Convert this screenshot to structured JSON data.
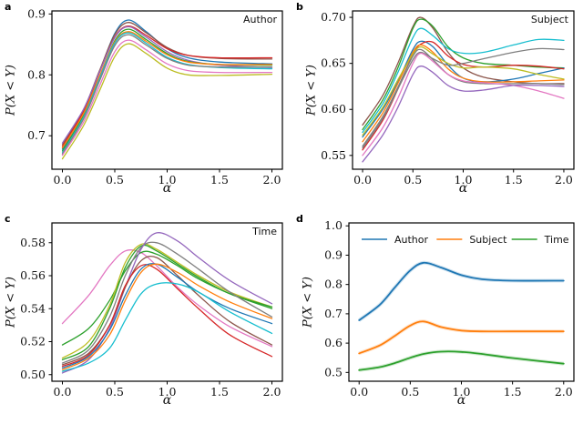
{
  "chart_data": [
    {
      "type": "line",
      "letter": "a",
      "panel_title": "Author",
      "xlabel": "α",
      "ylabel": "P(X < Y)",
      "xlim": [
        -0.1,
        2.1
      ],
      "ylim": [
        0.645,
        0.905
      ],
      "xticks": [
        "0.0",
        "0.5",
        "1.0",
        "1.5",
        "2.0"
      ],
      "xtick_values": [
        0,
        0.5,
        1.0,
        1.5,
        2.0
      ],
      "yticks": [
        "0.7",
        "0.8",
        "0.9"
      ],
      "ytick_values": [
        0.7,
        0.8,
        0.9
      ],
      "x": [
        0,
        0.2,
        0.35,
        0.5,
        0.63,
        0.8,
        1.0,
        1.2,
        1.5,
        2.0
      ],
      "series": [
        {
          "color": "#1f77b4",
          "y": [
            0.678,
            0.738,
            0.803,
            0.868,
            0.89,
            0.871,
            0.843,
            0.828,
            0.821,
            0.818
          ]
        },
        {
          "color": "#8c564b",
          "y": [
            0.685,
            0.742,
            0.805,
            0.866,
            0.886,
            0.869,
            0.845,
            0.832,
            0.827,
            0.826
          ]
        },
        {
          "color": "#d62728",
          "y": [
            0.682,
            0.74,
            0.802,
            0.862,
            0.88,
            0.865,
            0.843,
            0.832,
            0.828,
            0.828
          ]
        },
        {
          "color": "#9467bd",
          "y": [
            0.688,
            0.743,
            0.803,
            0.861,
            0.879,
            0.862,
            0.838,
            0.824,
            0.816,
            0.812
          ]
        },
        {
          "color": "#2ca02c",
          "y": [
            0.675,
            0.733,
            0.795,
            0.856,
            0.875,
            0.858,
            0.835,
            0.822,
            0.817,
            0.816
          ]
        },
        {
          "color": "#ff7f0e",
          "y": [
            0.68,
            0.736,
            0.796,
            0.854,
            0.871,
            0.855,
            0.833,
            0.821,
            0.817,
            0.817
          ]
        },
        {
          "color": "#17becf",
          "y": [
            0.672,
            0.73,
            0.792,
            0.852,
            0.869,
            0.852,
            0.829,
            0.817,
            0.812,
            0.81
          ]
        },
        {
          "color": "#7f7f7f",
          "y": [
            0.67,
            0.727,
            0.788,
            0.848,
            0.866,
            0.849,
            0.827,
            0.816,
            0.813,
            0.813
          ]
        },
        {
          "color": "#e377c2",
          "y": [
            0.668,
            0.722,
            0.78,
            0.838,
            0.857,
            0.841,
            0.818,
            0.807,
            0.804,
            0.804
          ]
        },
        {
          "color": "#bcbd22",
          "y": [
            0.662,
            0.716,
            0.772,
            0.83,
            0.851,
            0.835,
            0.811,
            0.8,
            0.799,
            0.801
          ]
        }
      ],
      "legend": null
    },
    {
      "type": "line",
      "letter": "b",
      "panel_title": "Subject",
      "xlabel": "α",
      "ylabel": "P(X < Y)",
      "xlim": [
        -0.1,
        2.1
      ],
      "ylim": [
        0.535,
        0.707
      ],
      "xticks": [
        "0.0",
        "0.5",
        "1.0",
        "1.5",
        "2.0"
      ],
      "xtick_values": [
        0,
        0.5,
        1.0,
        1.5,
        2.0
      ],
      "yticks": [
        "0.55",
        "0.60",
        "0.65",
        "0.70"
      ],
      "ytick_values": [
        0.55,
        0.6,
        0.65,
        0.7
      ],
      "x": [
        0,
        0.2,
        0.35,
        0.5,
        0.58,
        0.7,
        0.85,
        1.0,
        1.2,
        1.5,
        1.75,
        2.0
      ],
      "series": [
        {
          "color": "#8c564b",
          "y": [
            0.583,
            0.615,
            0.65,
            0.69,
            0.7,
            0.688,
            0.662,
            0.645,
            0.635,
            0.63,
            0.628,
            0.628
          ]
        },
        {
          "color": "#2ca02c",
          "y": [
            0.578,
            0.61,
            0.645,
            0.688,
            0.698,
            0.69,
            0.668,
            0.656,
            0.65,
            0.648,
            0.646,
            0.645
          ]
        },
        {
          "color": "#17becf",
          "y": [
            0.575,
            0.606,
            0.64,
            0.678,
            0.688,
            0.68,
            0.666,
            0.661,
            0.662,
            0.67,
            0.676,
            0.675
          ]
        },
        {
          "color": "#1f77b4",
          "y": [
            0.57,
            0.6,
            0.63,
            0.665,
            0.674,
            0.668,
            0.648,
            0.634,
            0.63,
            0.633,
            0.639,
            0.645
          ]
        },
        {
          "color": "#d62728",
          "y": [
            0.556,
            0.588,
            0.622,
            0.66,
            0.671,
            0.673,
            0.658,
            0.649,
            0.646,
            0.648,
            0.647,
            0.644
          ]
        },
        {
          "color": "#ff7f0e",
          "y": [
            0.565,
            0.596,
            0.628,
            0.662,
            0.67,
            0.662,
            0.644,
            0.634,
            0.63,
            0.63,
            0.631,
            0.632
          ]
        },
        {
          "color": "#bcbd22",
          "y": [
            0.572,
            0.602,
            0.632,
            0.66,
            0.668,
            0.66,
            0.65,
            0.645,
            0.646,
            0.644,
            0.638,
            0.633
          ]
        },
        {
          "color": "#7f7f7f",
          "y": [
            0.558,
            0.59,
            0.622,
            0.654,
            0.662,
            0.655,
            0.648,
            0.65,
            0.655,
            0.662,
            0.666,
            0.665
          ]
        },
        {
          "color": "#7f7f7f",
          "y": [
            0.56,
            0.592,
            0.624,
            0.658,
            0.665,
            0.654,
            0.638,
            0.63,
            0.628,
            0.628,
            0.628,
            0.627
          ]
        },
        {
          "color": "#e377c2",
          "y": [
            0.55,
            0.58,
            0.612,
            0.65,
            0.661,
            0.652,
            0.638,
            0.631,
            0.629,
            0.626,
            0.62,
            0.612
          ]
        },
        {
          "color": "#9467bd",
          "y": [
            0.543,
            0.572,
            0.602,
            0.638,
            0.647,
            0.64,
            0.626,
            0.62,
            0.621,
            0.626,
            0.626,
            0.625
          ]
        }
      ],
      "legend": null
    },
    {
      "type": "line",
      "letter": "c",
      "panel_title": "Time",
      "xlabel": "α",
      "ylabel": "P(X < Y)",
      "xlim": [
        -0.1,
        2.1
      ],
      "ylim": [
        0.496,
        0.592
      ],
      "xticks": [
        "0.0",
        "0.5",
        "1.0",
        "1.5",
        "2.0"
      ],
      "xtick_values": [
        0,
        0.5,
        1.0,
        1.5,
        2.0
      ],
      "yticks": [
        "0.50",
        "0.52",
        "0.54",
        "0.56",
        "0.58"
      ],
      "ytick_values": [
        0.5,
        0.52,
        0.54,
        0.56,
        0.58
      ],
      "x": [
        0,
        0.25,
        0.45,
        0.6,
        0.75,
        0.9,
        1.1,
        1.3,
        1.6,
        2.0
      ],
      "series": [
        {
          "color": "#e377c2",
          "y": [
            0.531,
            0.548,
            0.566,
            0.575,
            0.574,
            0.566,
            0.553,
            0.542,
            0.529,
            0.517
          ]
        },
        {
          "color": "#2ca02c",
          "y": [
            0.518,
            0.528,
            0.545,
            0.563,
            0.574,
            0.573,
            0.566,
            0.558,
            0.549,
            0.54
          ]
        },
        {
          "color": "#bcbd22",
          "y": [
            0.51,
            0.52,
            0.542,
            0.568,
            0.579,
            0.576,
            0.568,
            0.56,
            0.55,
            0.541
          ]
        },
        {
          "color": "#2ca02c",
          "y": [
            0.509,
            0.517,
            0.54,
            0.565,
            0.578,
            0.575,
            0.567,
            0.559,
            0.549,
            0.541
          ]
        },
        {
          "color": "#7f7f7f",
          "y": [
            0.507,
            0.515,
            0.535,
            0.56,
            0.577,
            0.58,
            0.573,
            0.564,
            0.55,
            0.535
          ]
        },
        {
          "color": "#9467bd",
          "y": [
            0.501,
            0.509,
            0.528,
            0.553,
            0.576,
            0.586,
            0.581,
            0.571,
            0.557,
            0.543
          ]
        },
        {
          "color": "#8c564b",
          "y": [
            0.506,
            0.513,
            0.53,
            0.553,
            0.569,
            0.571,
            0.56,
            0.548,
            0.532,
            0.518
          ]
        },
        {
          "color": "#d62728",
          "y": [
            0.505,
            0.512,
            0.53,
            0.554,
            0.566,
            0.564,
            0.552,
            0.54,
            0.524,
            0.511
          ]
        },
        {
          "color": "#1f77b4",
          "y": [
            0.504,
            0.511,
            0.527,
            0.548,
            0.564,
            0.567,
            0.559,
            0.55,
            0.54,
            0.531
          ]
        },
        {
          "color": "#ff7f0e",
          "y": [
            0.503,
            0.51,
            0.524,
            0.545,
            0.562,
            0.567,
            0.562,
            0.554,
            0.544,
            0.534
          ]
        },
        {
          "color": "#17becf",
          "y": [
            0.502,
            0.507,
            0.516,
            0.533,
            0.549,
            0.555,
            0.555,
            0.55,
            0.538,
            0.525
          ]
        }
      ],
      "legend": null
    },
    {
      "type": "line",
      "letter": "d",
      "panel_title": "",
      "xlabel": "α",
      "ylabel": "P(X < Y)",
      "xlim": [
        -0.1,
        2.1
      ],
      "ylim": [
        0.47,
        1.01
      ],
      "xticks": [
        "0.0",
        "0.5",
        "1.0",
        "1.5",
        "2.0"
      ],
      "xtick_values": [
        0,
        0.5,
        1.0,
        1.5,
        2.0
      ],
      "yticks": [
        "0.5",
        "0.6",
        "0.7",
        "0.8",
        "0.9",
        "1.0"
      ],
      "ytick_values": [
        0.5,
        0.6,
        0.7,
        0.8,
        0.9,
        1.0
      ],
      "x": [
        0,
        0.2,
        0.35,
        0.5,
        0.63,
        0.8,
        1.0,
        1.2,
        1.5,
        2.0
      ],
      "series": [
        {
          "name": "Author",
          "color": "#1f77b4",
          "y": [
            0.678,
            0.73,
            0.79,
            0.848,
            0.874,
            0.858,
            0.832,
            0.818,
            0.813,
            0.813
          ]
        },
        {
          "name": "Subject",
          "color": "#ff7f0e",
          "y": [
            0.565,
            0.592,
            0.625,
            0.66,
            0.674,
            0.655,
            0.643,
            0.64,
            0.64,
            0.64
          ]
        },
        {
          "name": "Time",
          "color": "#2ca02c",
          "y": [
            0.508,
            0.518,
            0.532,
            0.55,
            0.563,
            0.571,
            0.57,
            0.563,
            0.549,
            0.53
          ]
        }
      ],
      "legend": {
        "position": "upper horizontal",
        "entries": [
          {
            "label": "Author",
            "color": "#1f77b4"
          },
          {
            "label": "Subject",
            "color": "#ff7f0e"
          },
          {
            "label": "Time",
            "color": "#2ca02c"
          }
        ]
      }
    }
  ]
}
